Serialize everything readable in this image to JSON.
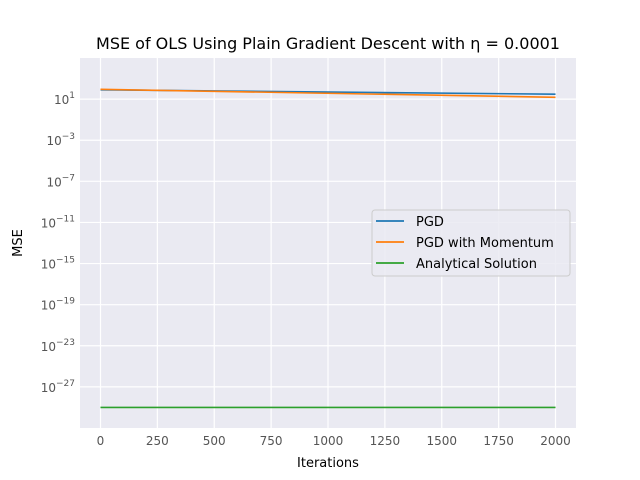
{
  "chart_data": {
    "type": "line",
    "title": "MSE of OLS Using Plain Gradient Descent with η = 0.0001",
    "xlabel": "Iterations",
    "ylabel": "MSE",
    "xlim": [
      -90,
      2090
    ],
    "ylim_log10": [
      -31,
      5
    ],
    "y_scale": "log",
    "grid": true,
    "legend": "center-right",
    "x_ticks": [
      {
        "value": 0,
        "label": "0"
      },
      {
        "value": 250,
        "label": "250"
      },
      {
        "value": 500,
        "label": "500"
      },
      {
        "value": 750,
        "label": "750"
      },
      {
        "value": 1000,
        "label": "1000"
      },
      {
        "value": 1250,
        "label": "1250"
      },
      {
        "value": 1500,
        "label": "1500"
      },
      {
        "value": 1750,
        "label": "1750"
      },
      {
        "value": 2000,
        "label": "2000"
      }
    ],
    "y_ticks": [
      {
        "exp": 1,
        "base": "10",
        "power": "1"
      },
      {
        "exp": -3,
        "base": "10",
        "power": "−3"
      },
      {
        "exp": -7,
        "base": "10",
        "power": "−7"
      },
      {
        "exp": -11,
        "base": "10",
        "power": "−11"
      },
      {
        "exp": -15,
        "base": "10",
        "power": "−15"
      },
      {
        "exp": -19,
        "base": "10",
        "power": "−19"
      },
      {
        "exp": -23,
        "base": "10",
        "power": "−23"
      },
      {
        "exp": -27,
        "base": "10",
        "power": "−27"
      }
    ],
    "series": [
      {
        "name": "PGD",
        "color": "#1f77b4",
        "x": [
          0,
          2000
        ],
        "y": [
          80,
          30
        ]
      },
      {
        "name": "PGD with Momentum",
        "color": "#ff7f0e",
        "x": [
          0,
          2000
        ],
        "y": [
          90,
          15
        ]
      },
      {
        "name": "Analytical Solution",
        "color": "#2ca02c",
        "x": [
          0,
          2000
        ],
        "y": [
          1e-29,
          1e-29
        ]
      }
    ]
  }
}
